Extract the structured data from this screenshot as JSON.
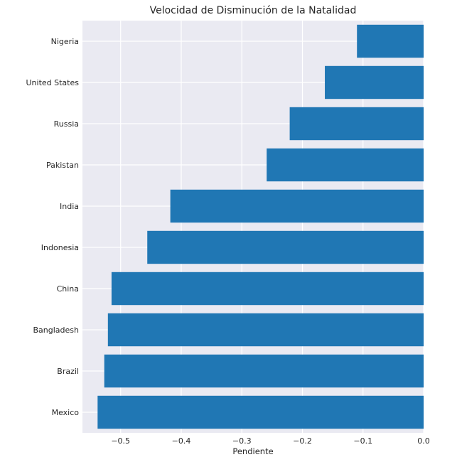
{
  "chart_data": {
    "type": "bar",
    "orientation": "horizontal",
    "title": "Velocidad de Disminución de la Natalidad",
    "xlabel": "Pendiente",
    "ylabel": "",
    "categories": [
      "Mexico",
      "Brazil",
      "Bangladesh",
      "China",
      "Indonesia",
      "India",
      "Pakistan",
      "Russia",
      "United States",
      "Nigeria"
    ],
    "values": [
      -0.538,
      -0.527,
      -0.521,
      -0.515,
      -0.456,
      -0.418,
      -0.259,
      -0.221,
      -0.163,
      -0.11
    ],
    "xlim": [
      -0.563,
      0.0
    ],
    "xticks": [
      -0.5,
      -0.4,
      -0.3,
      -0.2,
      -0.1,
      0.0
    ],
    "xtick_labels": [
      "−0.5",
      "−0.4",
      "−0.3",
      "−0.2",
      "−0.1",
      "0.0"
    ],
    "grid": true,
    "bar_color": "#2077b4",
    "background_color": "#eaeaf2"
  }
}
